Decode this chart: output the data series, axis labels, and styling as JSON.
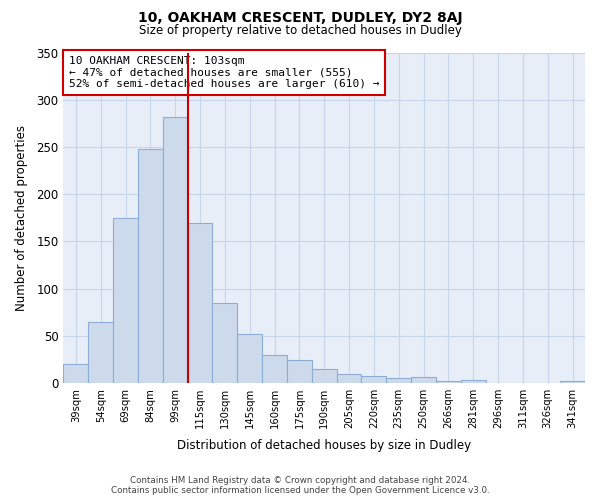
{
  "title": "10, OAKHAM CRESCENT, DUDLEY, DY2 8AJ",
  "subtitle": "Size of property relative to detached houses in Dudley",
  "xlabel": "Distribution of detached houses by size in Dudley",
  "ylabel": "Number of detached properties",
  "bar_color": "#ccdaec",
  "bar_edge_color": "#8eadd4",
  "plot_bg_color": "#e8eef8",
  "categories": [
    "39sqm",
    "54sqm",
    "69sqm",
    "84sqm",
    "99sqm",
    "115sqm",
    "130sqm",
    "145sqm",
    "160sqm",
    "175sqm",
    "190sqm",
    "205sqm",
    "220sqm",
    "235sqm",
    "250sqm",
    "266sqm",
    "281sqm",
    "296sqm",
    "311sqm",
    "326sqm",
    "341sqm"
  ],
  "values": [
    20,
    65,
    175,
    248,
    282,
    170,
    85,
    52,
    30,
    24,
    15,
    10,
    8,
    5,
    6,
    2,
    3,
    0,
    0,
    0,
    2
  ],
  "ylim": [
    0,
    350
  ],
  "yticks": [
    0,
    50,
    100,
    150,
    200,
    250,
    300,
    350
  ],
  "vline_x_idx": 4.5,
  "vline_color": "#cc0000",
  "annotation_line1": "10 OAKHAM CRESCENT: 103sqm",
  "annotation_line2": "← 47% of detached houses are smaller (555)",
  "annotation_line3": "52% of semi-detached houses are larger (610) →",
  "footer_line1": "Contains HM Land Registry data © Crown copyright and database right 2024.",
  "footer_line2": "Contains public sector information licensed under the Open Government Licence v3.0.",
  "background_color": "#ffffff",
  "grid_color": "#c8d4e8"
}
